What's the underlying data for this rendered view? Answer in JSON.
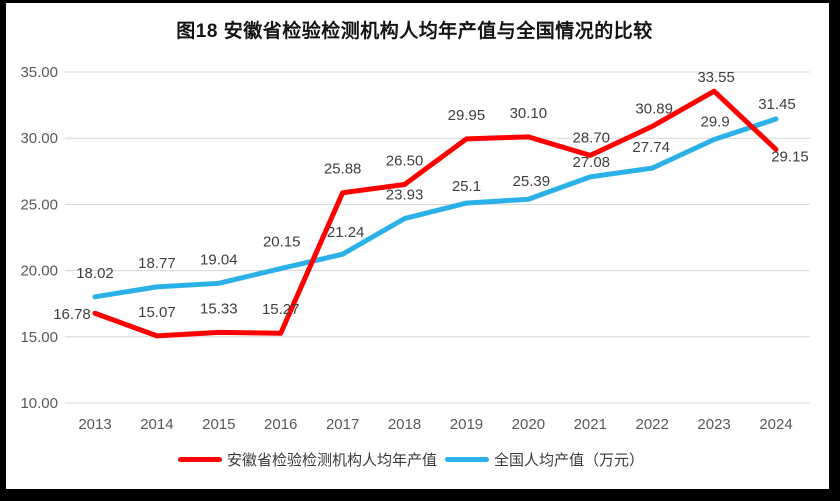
{
  "chart_data": {
    "type": "line",
    "title": "图18 安徽省检验检测机构人均年产值与全国情况的比较",
    "categories": [
      "2013",
      "2014",
      "2015",
      "2016",
      "2017",
      "2018",
      "2019",
      "2020",
      "2021",
      "2022",
      "2023",
      "2024"
    ],
    "series": [
      {
        "name": "安徽省检验检测机构人均年产值",
        "color": "#fe0000",
        "values": [
          16.78,
          15.07,
          15.33,
          15.27,
          25.88,
          26.5,
          29.95,
          30.1,
          28.7,
          30.89,
          33.55,
          29.15
        ],
        "labels": [
          "16.78",
          "15.07",
          "15.33",
          "15.27",
          "25.88",
          "26.50",
          "29.95",
          "30.10",
          "28.70",
          "30.89",
          "33.55",
          "29.15"
        ],
        "label_offsets": {
          "0": [
            -23,
            25
          ],
          "8": [
            1,
            6
          ],
          "9": [
            2,
            6
          ],
          "10": [
            2,
            10
          ],
          "11": [
            14,
            31
          ]
        }
      },
      {
        "name": "全国人均产值（万元）",
        "color": "#2bb1e7",
        "values": [
          18.02,
          18.77,
          19.04,
          20.15,
          21.24,
          23.93,
          25.1,
          25.39,
          27.08,
          27.74,
          29.9,
          31.45
        ],
        "labels": [
          "18.02",
          "18.77",
          "19.04",
          "20.15",
          "21.24",
          "23.93",
          "25.1",
          "25.39",
          "27.08",
          "27.74",
          "29.9",
          "31.45"
        ],
        "label_offsets": {
          "3": [
            1,
            -3
          ],
          "4": [
            3,
            2
          ],
          "6": [
            0,
            7
          ],
          "7": [
            3,
            6
          ],
          "8": [
            1,
            9
          ],
          "9": [
            -1,
            3
          ],
          "10": [
            1,
            6
          ],
          "11": [
            1,
            9
          ]
        }
      }
    ],
    "ylim": [
      10,
      35
    ],
    "yticks": [
      "10.00",
      "15.00",
      "20.00",
      "25.00",
      "30.00",
      "35.00"
    ],
    "xlabel": "",
    "ylabel": "",
    "grid": true,
    "legend_position": "bottom",
    "colors": {
      "grid": "#d6d6d6",
      "axis_text": "#595959",
      "data_label_text": "#3f3f3f",
      "background": "#ffffff",
      "frame": "#000000"
    }
  }
}
